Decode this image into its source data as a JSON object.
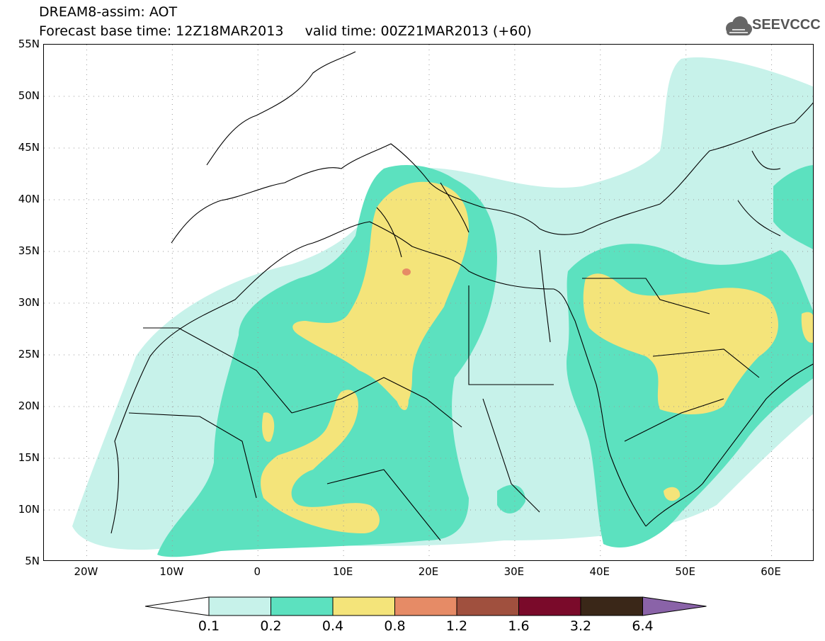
{
  "title": {
    "line1": "DREAM8-assim: AOT",
    "line2": "Forecast base time: 12Z18MAR2013     valid time: 00Z21MAR2013 (+60)"
  },
  "logo": {
    "text": "SEEVCCC",
    "icon": "cloud-logo-icon"
  },
  "map": {
    "lat_labels": [
      "55N",
      "50N",
      "45N",
      "40N",
      "35N",
      "30N",
      "25N",
      "20N",
      "15N",
      "10N",
      "5N"
    ],
    "lon_labels": [
      "20W",
      "10W",
      "0",
      "10E",
      "20E",
      "30E",
      "40E",
      "50E",
      "60E"
    ],
    "lon_range": [
      -25,
      65
    ],
    "lat_range": [
      5,
      55
    ],
    "grid": "dotted"
  },
  "colorbar": {
    "labels": [
      "0.1",
      "0.2",
      "0.4",
      "0.8",
      "1.2",
      "1.6",
      "3.2",
      "6.4"
    ],
    "colors": {
      "below": "#ffffff",
      "b1": "#c7f2ea",
      "b2": "#5ce1bf",
      "b3": "#f4e47a",
      "b4": "#e68b66",
      "b5": "#a0503e",
      "b6": "#7a0a2a",
      "b7": "#3a2718",
      "above": "#8a63a8"
    }
  }
}
